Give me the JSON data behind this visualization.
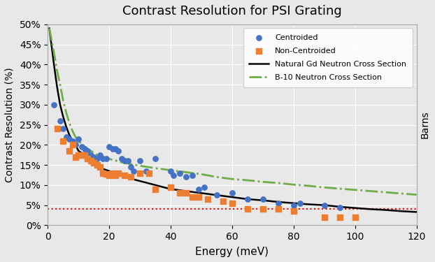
{
  "title": "Contrast Resolution for PSI Grating",
  "xlabel": "Energy (meV)",
  "ylabel": "Contrast Resolution (%)",
  "ylabel_right": "Barns",
  "ylim": [
    0,
    0.5
  ],
  "xlim": [
    0,
    120
  ],
  "yticks": [
    0,
    0.05,
    0.1,
    0.15,
    0.2,
    0.25,
    0.3,
    0.35,
    0.4,
    0.45,
    0.5
  ],
  "xticks": [
    0,
    20,
    40,
    60,
    80,
    100,
    120
  ],
  "red_line_y": 0.04,
  "bg_color": "#e8e8e8",
  "centroided_color": "#4472C4",
  "noncentroided_color": "#ED7D31",
  "centroided_x": [
    2,
    4,
    5,
    6,
    7,
    8,
    9,
    10,
    11,
    12,
    13,
    14,
    15,
    16,
    17,
    18,
    19,
    20,
    21,
    22,
    23,
    24,
    25,
    26,
    27,
    28,
    30,
    32,
    35,
    40,
    41,
    43,
    45,
    47,
    49,
    51,
    55,
    60,
    65,
    70,
    75,
    80,
    82,
    90,
    95
  ],
  "centroided_y": [
    0.3,
    0.26,
    0.24,
    0.22,
    0.215,
    0.21,
    0.2,
    0.215,
    0.195,
    0.19,
    0.185,
    0.175,
    0.17,
    0.165,
    0.175,
    0.165,
    0.165,
    0.195,
    0.19,
    0.19,
    0.185,
    0.165,
    0.16,
    0.16,
    0.145,
    0.135,
    0.16,
    0.135,
    0.165,
    0.135,
    0.125,
    0.13,
    0.12,
    0.125,
    0.09,
    0.095,
    0.075,
    0.08,
    0.065,
    0.065,
    0.055,
    0.05,
    0.055,
    0.05,
    0.045
  ],
  "noncentroided_x": [
    3,
    5,
    7,
    8,
    9,
    10,
    11,
    12,
    13,
    14,
    15,
    16,
    17,
    18,
    19,
    20,
    21,
    22,
    23,
    25,
    27,
    30,
    33,
    35,
    40,
    43,
    45,
    47,
    49,
    52,
    57,
    60,
    65,
    70,
    75,
    80,
    90,
    95,
    100
  ],
  "noncentroided_y": [
    0.24,
    0.21,
    0.185,
    0.2,
    0.17,
    0.175,
    0.175,
    0.175,
    0.165,
    0.16,
    0.155,
    0.15,
    0.145,
    0.13,
    0.128,
    0.125,
    0.13,
    0.125,
    0.13,
    0.125,
    0.12,
    0.13,
    0.13,
    0.09,
    0.095,
    0.08,
    0.08,
    0.07,
    0.07,
    0.065,
    0.06,
    0.055,
    0.04,
    0.04,
    0.04,
    0.035,
    0.02,
    0.02,
    0.02
  ],
  "gd_curve_x": [
    0.5,
    1,
    2,
    3,
    4,
    5,
    6,
    7,
    8,
    9,
    10,
    12,
    14,
    16,
    18,
    20,
    25,
    30,
    35,
    40,
    45,
    50,
    55,
    60,
    65,
    70,
    75,
    80,
    85,
    90,
    95,
    100,
    105,
    110,
    115,
    120
  ],
  "gd_curve_y": [
    0.49,
    0.46,
    0.4,
    0.345,
    0.3,
    0.27,
    0.245,
    0.225,
    0.21,
    0.2,
    0.185,
    0.175,
    0.16,
    0.15,
    0.14,
    0.135,
    0.12,
    0.11,
    0.1,
    0.09,
    0.085,
    0.08,
    0.075,
    0.07,
    0.065,
    0.062,
    0.058,
    0.055,
    0.052,
    0.05,
    0.046,
    0.043,
    0.04,
    0.038,
    0.035,
    0.033
  ],
  "b10_curve_x": [
    0.5,
    1,
    2,
    3,
    4,
    5,
    6,
    7,
    8,
    9,
    10,
    12,
    14,
    16,
    18,
    20,
    25,
    30,
    35,
    40,
    45,
    50,
    55,
    60,
    65,
    70,
    75,
    80,
    85,
    90,
    95,
    100,
    105,
    110,
    115,
    120
  ],
  "b10_curve_y": [
    0.49,
    0.47,
    0.43,
    0.385,
    0.35,
    0.31,
    0.28,
    0.255,
    0.235,
    0.22,
    0.21,
    0.195,
    0.185,
    0.175,
    0.168,
    0.165,
    0.155,
    0.148,
    0.142,
    0.137,
    0.132,
    0.127,
    0.12,
    0.115,
    0.112,
    0.108,
    0.105,
    0.101,
    0.098,
    0.094,
    0.091,
    0.088,
    0.085,
    0.082,
    0.079,
    0.076
  ]
}
